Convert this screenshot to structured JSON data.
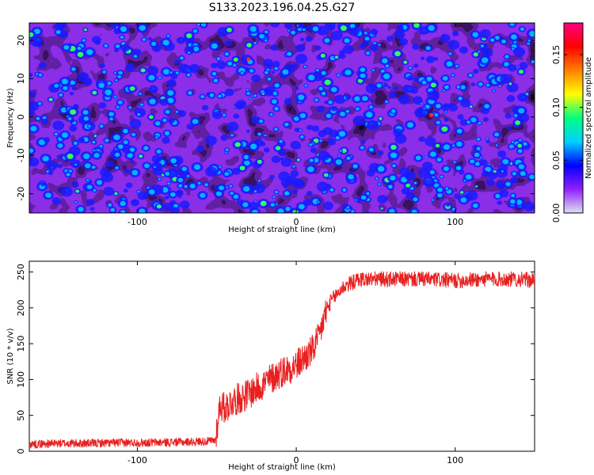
{
  "title": "S133.2023.196.04.25.G27",
  "chart_data": [
    {
      "type": "heatmap",
      "title": "S133.2023.196.04.25.G27",
      "xlabel": "Height of straight line (km)",
      "ylabel": "Frequency (Hz)",
      "xlim": [
        -168,
        150
      ],
      "ylim": [
        -25,
        24.5
      ],
      "xticks": [
        -100,
        0,
        100
      ],
      "yticks": [
        -20,
        -10,
        0,
        10,
        20
      ],
      "colorbar": {
        "label": "Normalized spectral amplitude",
        "range": [
          0,
          0.18
        ],
        "ticks": [
          "0.00",
          "0.05",
          "0.10",
          "0.15"
        ],
        "colors": [
          "#e0e0f0",
          "#9020ff",
          "#0000ff",
          "#00d0ff",
          "#00ff80",
          "#ffff00",
          "#ff8000",
          "#ff0000",
          "#ff0080"
        ]
      }
    },
    {
      "type": "line",
      "xlabel": "Height of straight line (km)",
      "ylabel": "SNR (10 * v/v)",
      "xlim": [
        -168,
        150
      ],
      "ylim": [
        0,
        265
      ],
      "xticks": [
        -100,
        0,
        100
      ],
      "yticks": [
        0,
        50,
        100,
        150,
        200,
        250
      ],
      "color": "#e82020",
      "x": [
        -168,
        -150,
        -130,
        -110,
        -90,
        -70,
        -55,
        -51,
        -48,
        -45,
        -40,
        -30,
        -20,
        -10,
        0,
        5,
        10,
        12,
        14,
        15,
        18,
        22,
        30,
        40,
        60,
        80,
        100,
        120,
        140,
        150
      ],
      "y": [
        10,
        11,
        11,
        12,
        12,
        13,
        14,
        15,
        65,
        60,
        70,
        80,
        95,
        110,
        120,
        130,
        140,
        150,
        155,
        165,
        190,
        210,
        230,
        240,
        240,
        240,
        238,
        240,
        240,
        238
      ]
    }
  ]
}
